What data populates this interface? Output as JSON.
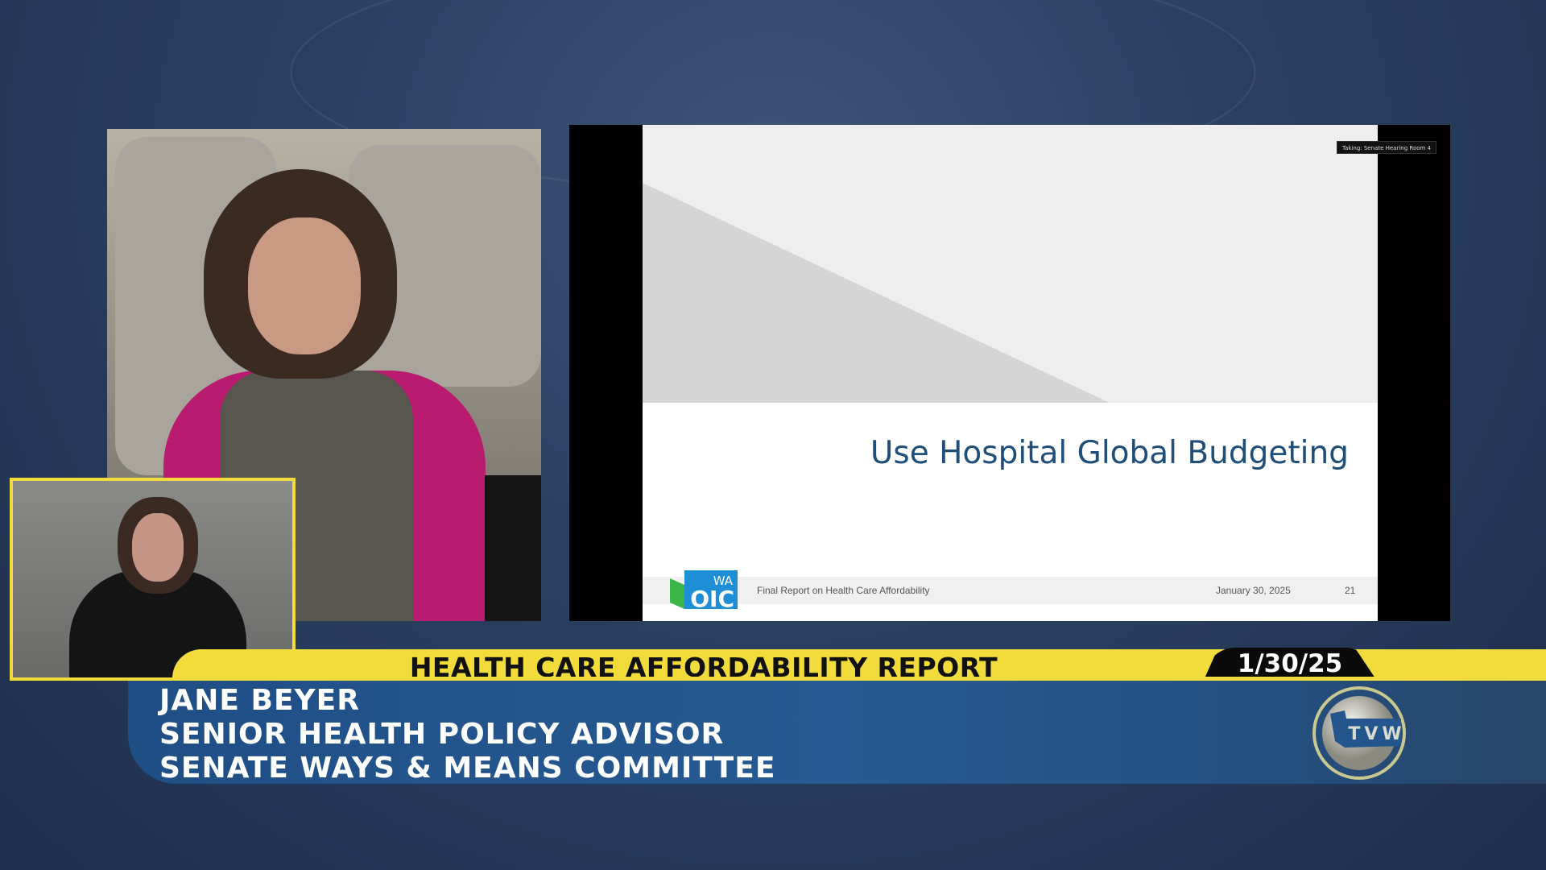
{
  "slide": {
    "title": "Use Hospital Global Budgeting",
    "footer_title": "Final Report on Health Care Affordability",
    "footer_date": "January 30, 2025",
    "page_number": "21",
    "logo_text": {
      "state": "WA",
      "org": "OIC"
    },
    "room_label": "Taking: Senate Hearing Room 4"
  },
  "banner": {
    "title": "HEALTH CARE AFFORDABILITY REPORT",
    "date": "1/30/25"
  },
  "lower_third": {
    "name": "JANE BEYER",
    "role": "SENIOR HEALTH POLICY ADVISOR",
    "organization": "SENATE WAYS & MEANS COMMITTEE"
  },
  "network_logo": "TVW",
  "colors": {
    "banner_yellow": "#f2dc3c",
    "lower_blue": "#1f4e85",
    "slide_title": "#1f4e79"
  }
}
